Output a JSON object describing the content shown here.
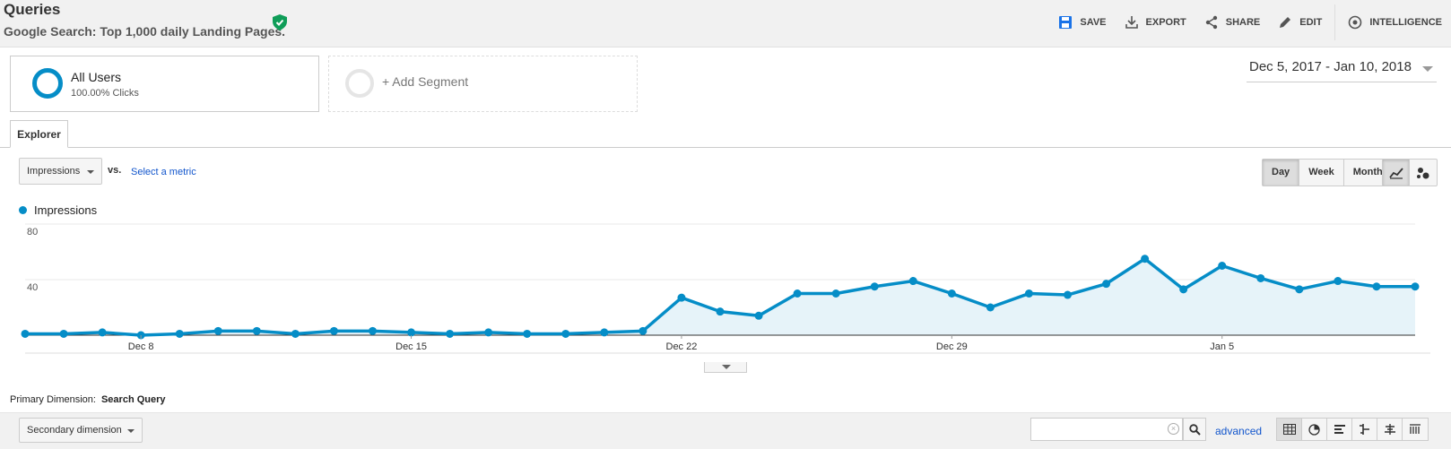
{
  "header": {
    "title": "Queries",
    "subtitle": "Google Search: Top 1,000 daily Landing Pages.",
    "actions": [
      {
        "label": "SAVE",
        "icon": "save-icon"
      },
      {
        "label": "EXPORT",
        "icon": "export-icon"
      },
      {
        "label": "SHARE",
        "icon": "share-icon"
      },
      {
        "label": "EDIT",
        "icon": "edit-icon"
      },
      {
        "label": "INTELLIGENCE",
        "icon": "intelligence-icon"
      }
    ]
  },
  "segments": {
    "active": {
      "name": "All Users",
      "detail": "100.00% Clicks"
    },
    "add_label": "+ Add Segment"
  },
  "date_range": "Dec 5, 2017 - Jan 10, 2018",
  "tabs": [
    {
      "label": "Explorer"
    }
  ],
  "metric": {
    "selected": "Impressions",
    "vs_label": "vs.",
    "compare_link": "Select a metric"
  },
  "periods": [
    {
      "label": "Day",
      "active": true
    },
    {
      "label": "Week",
      "active": false
    },
    {
      "label": "Month",
      "active": false
    }
  ],
  "legend": {
    "label": "Impressions"
  },
  "chart_data": {
    "type": "line",
    "series": [
      {
        "name": "Impressions",
        "color": "#058dc7",
        "values": [
          1,
          1,
          2,
          0,
          1,
          3,
          3,
          1,
          3,
          3,
          2,
          1,
          2,
          1,
          1,
          2,
          3,
          27,
          17,
          14,
          30,
          30,
          35,
          39,
          30,
          20,
          30,
          29,
          37,
          55,
          33,
          50,
          41,
          33,
          39,
          35,
          35
        ]
      }
    ],
    "x_tick_labels": [
      {
        "label": "Dec 8",
        "index": 3
      },
      {
        "label": "Dec 15",
        "index": 10
      },
      {
        "label": "Dec 22",
        "index": 17
      },
      {
        "label": "Dec 29",
        "index": 24
      },
      {
        "label": "Jan 5",
        "index": 31
      }
    ],
    "y_ticks": [
      40,
      80
    ],
    "ylim": [
      0,
      80
    ],
    "grid": true
  },
  "table": {
    "primary_dimension_label": "Primary Dimension:",
    "primary_dimension_value": "Search Query",
    "secondary_dimension": "Secondary dimension",
    "search_placeholder": "",
    "advanced_label": "advanced"
  }
}
